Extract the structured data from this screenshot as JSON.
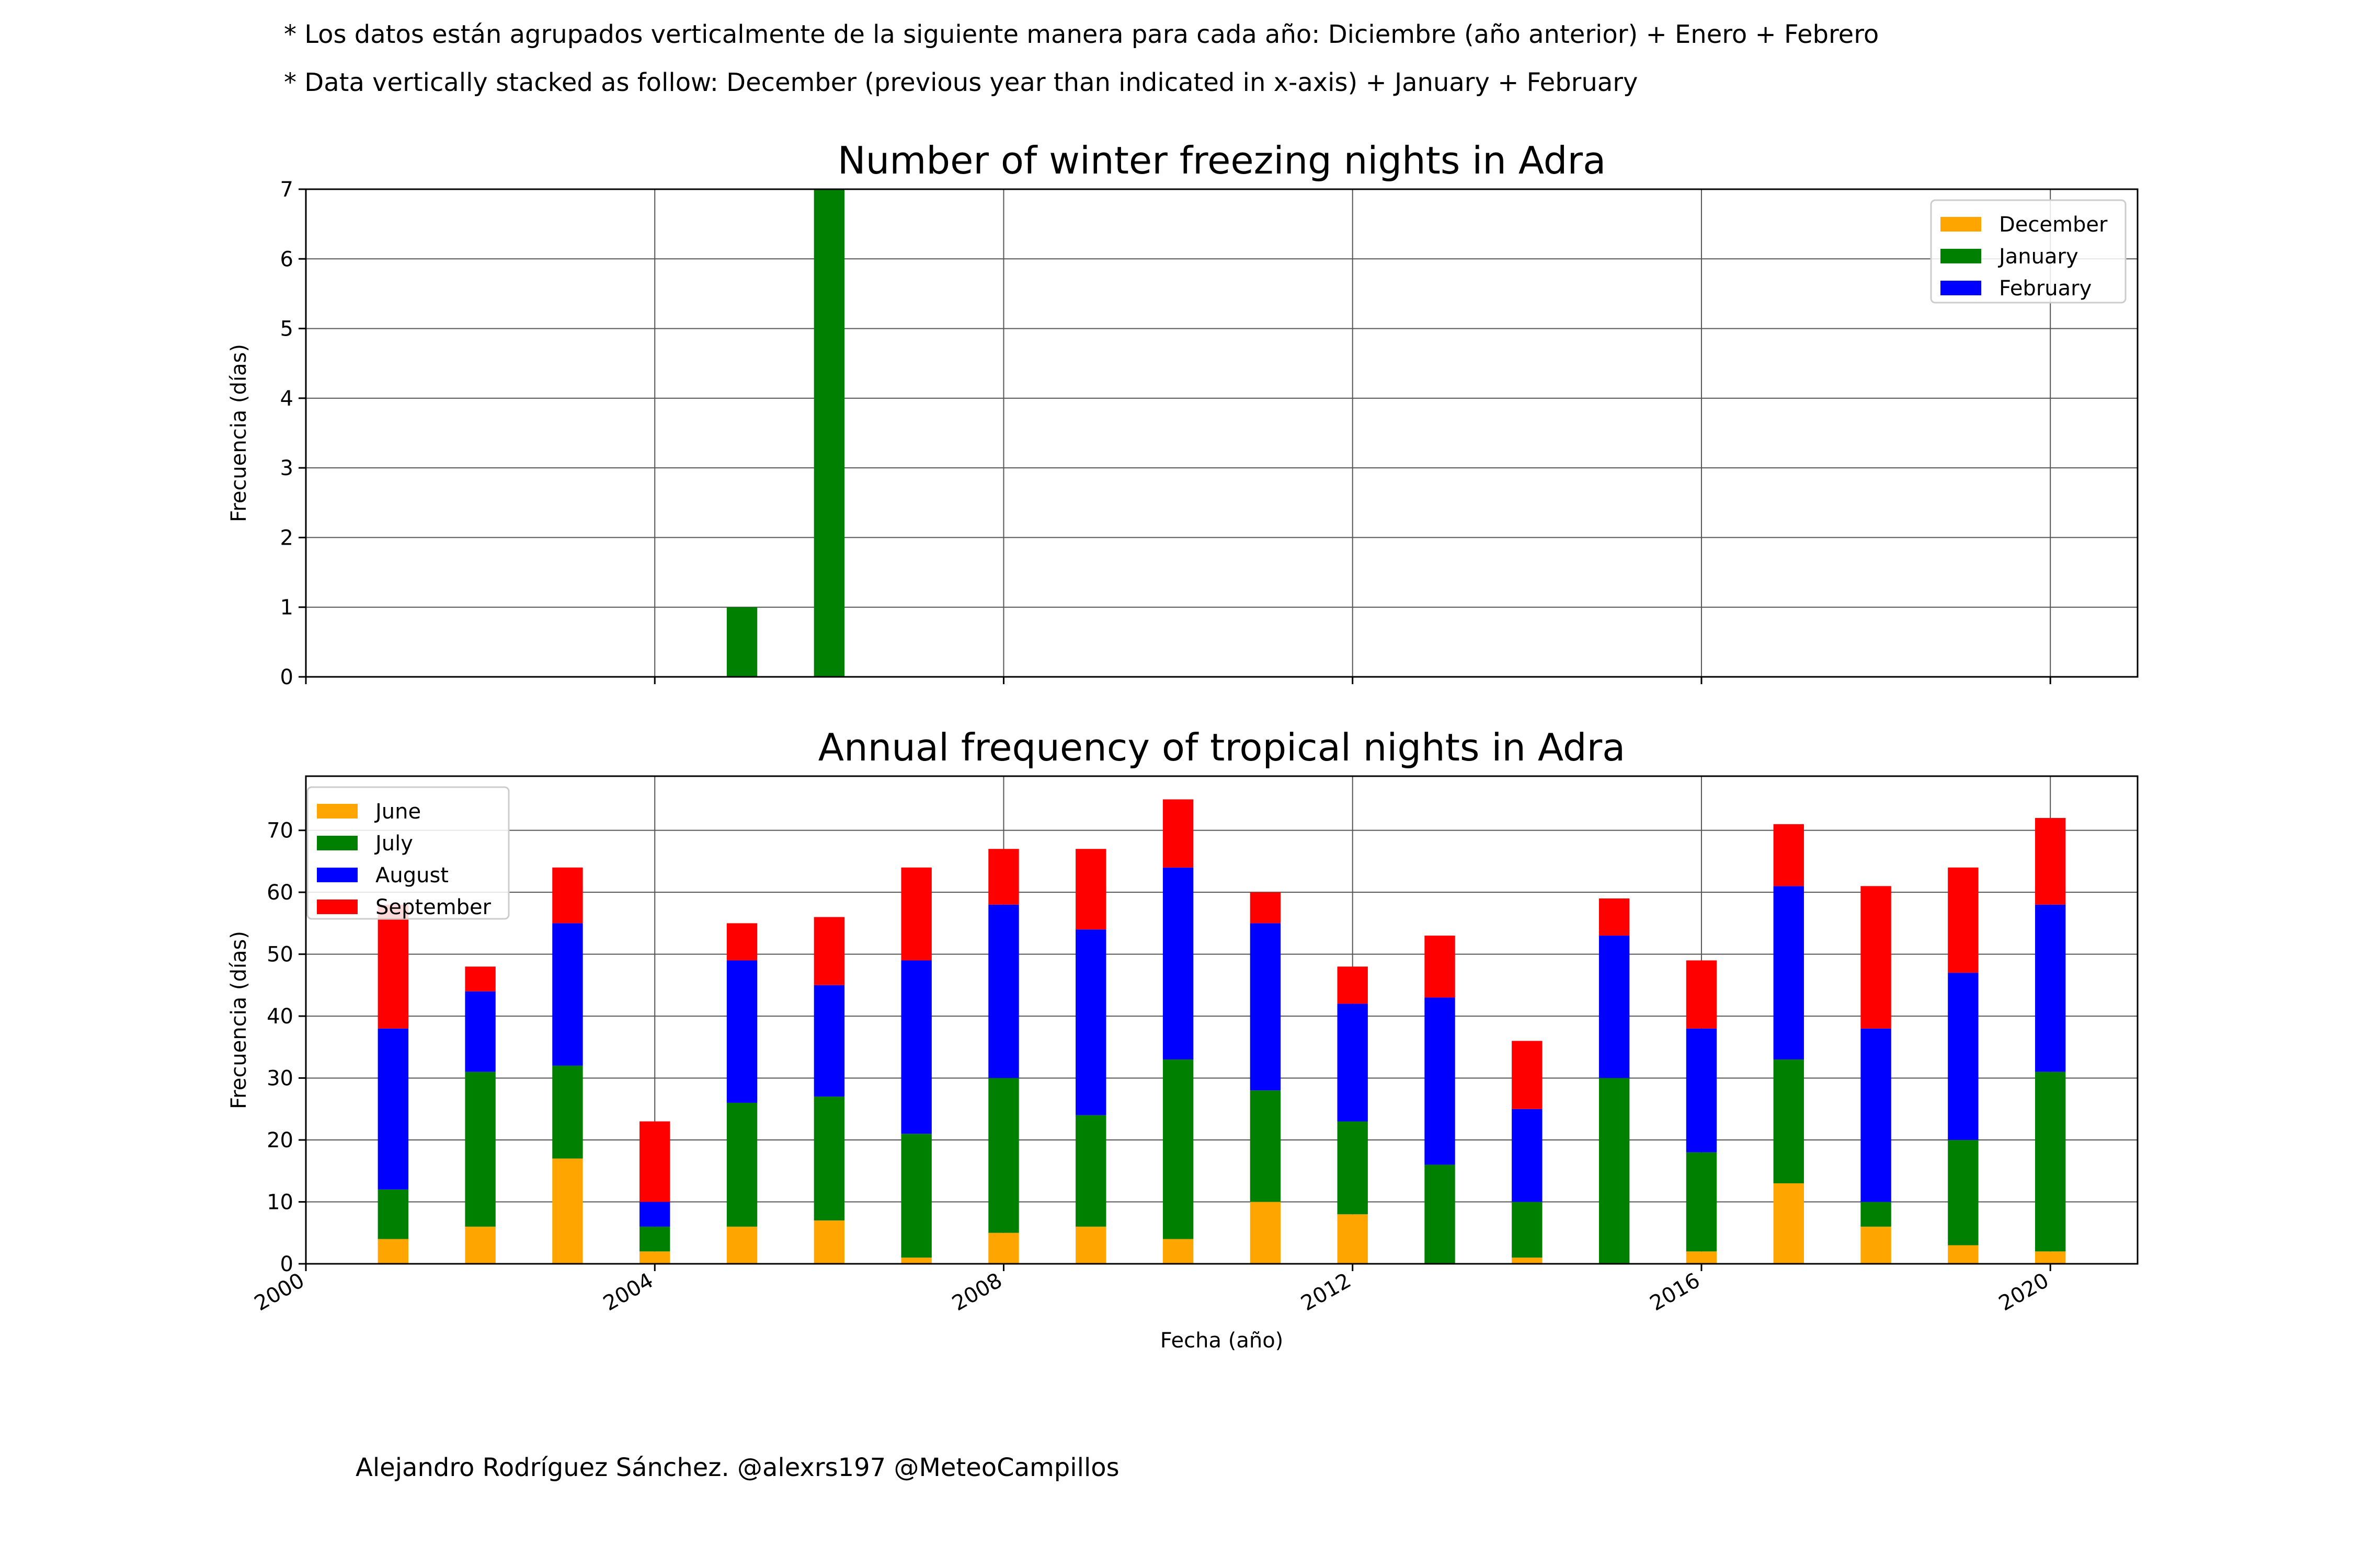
{
  "notes": {
    "line1": "* Los datos están agrupados verticalmente de la siguiente manera para cada año: Diciembre (año anterior) + Enero  + Febrero",
    "line2": "* Data vertically stacked as follow: December (previous year than indicated in x-axis) + January  + February"
  },
  "credit": "Alejandro Rodríguez Sánchez. @alexrs197 @MeteoCampillos",
  "chart_data": [
    {
      "type": "bar",
      "stacked": true,
      "title": "Number of winter freezing nights in Adra",
      "xlabel": "",
      "ylabel": "Frecuencia (días)",
      "xlim": [
        2000,
        2021
      ],
      "ylim": [
        0,
        7
      ],
      "yticks": [
        0,
        1,
        2,
        3,
        4,
        5,
        6,
        7
      ],
      "xgrid": [
        2000,
        2004,
        2008,
        2012,
        2016,
        2020
      ],
      "grid": true,
      "legend_position": "top-right",
      "x": [
        2001,
        2002,
        2003,
        2004,
        2005,
        2006,
        2007,
        2008,
        2009,
        2010,
        2011,
        2012,
        2013,
        2014,
        2015,
        2016,
        2017,
        2018,
        2019,
        2020
      ],
      "series": [
        {
          "name": "December",
          "color": "#ffa500",
          "values": [
            0,
            0,
            0,
            0,
            0,
            0,
            0,
            0,
            0,
            0,
            0,
            0,
            0,
            0,
            0,
            0,
            0,
            0,
            0,
            0
          ]
        },
        {
          "name": "January",
          "color": "#008000",
          "values": [
            0,
            0,
            0,
            0,
            1,
            7,
            0,
            0,
            0,
            0,
            0,
            0,
            0,
            0,
            0,
            0,
            0,
            0,
            0,
            0
          ]
        },
        {
          "name": "February",
          "color": "#0000ff",
          "values": [
            0,
            0,
            0,
            0,
            0,
            0,
            0,
            0,
            0,
            0,
            0,
            0,
            0,
            0,
            0,
            0,
            0,
            0,
            0,
            0
          ]
        }
      ]
    },
    {
      "type": "bar",
      "stacked": true,
      "title": "Annual frequency of tropical nights in Adra",
      "xlabel": "Fecha (año)",
      "ylabel": "Frecuencia (días)",
      "xlim": [
        2000,
        2021
      ],
      "ylim": [
        0,
        78.75
      ],
      "yticks": [
        0,
        10,
        20,
        30,
        40,
        50,
        60,
        70
      ],
      "xticks": [
        2000,
        2004,
        2008,
        2012,
        2016,
        2020
      ],
      "xticklabels": [
        "2000",
        "2004",
        "2008",
        "2012",
        "2016",
        "2020"
      ],
      "grid": true,
      "legend_position": "top-left",
      "x": [
        2001,
        2002,
        2003,
        2004,
        2005,
        2006,
        2007,
        2008,
        2009,
        2010,
        2011,
        2012,
        2013,
        2014,
        2015,
        2016,
        2017,
        2018,
        2019,
        2020
      ],
      "series": [
        {
          "name": "June",
          "color": "#ffa500",
          "values": [
            4,
            6,
            17,
            2,
            6,
            7,
            1,
            5,
            6,
            4,
            10,
            8,
            0,
            1,
            0,
            2,
            13,
            6,
            3,
            2
          ]
        },
        {
          "name": "July",
          "color": "#008000",
          "values": [
            8,
            25,
            15,
            4,
            20,
            20,
            20,
            25,
            18,
            29,
            18,
            15,
            16,
            9,
            30,
            16,
            20,
            4,
            17,
            29
          ]
        },
        {
          "name": "August",
          "color": "#0000ff",
          "values": [
            26,
            13,
            23,
            4,
            23,
            18,
            28,
            28,
            30,
            31,
            27,
            19,
            27,
            15,
            23,
            20,
            28,
            28,
            27,
            27
          ]
        },
        {
          "name": "September",
          "color": "#ff0000",
          "values": [
            20,
            4,
            9,
            13,
            6,
            11,
            15,
            9,
            13,
            11,
            5,
            6,
            10,
            11,
            6,
            11,
            10,
            23,
            17,
            14
          ]
        }
      ]
    }
  ]
}
